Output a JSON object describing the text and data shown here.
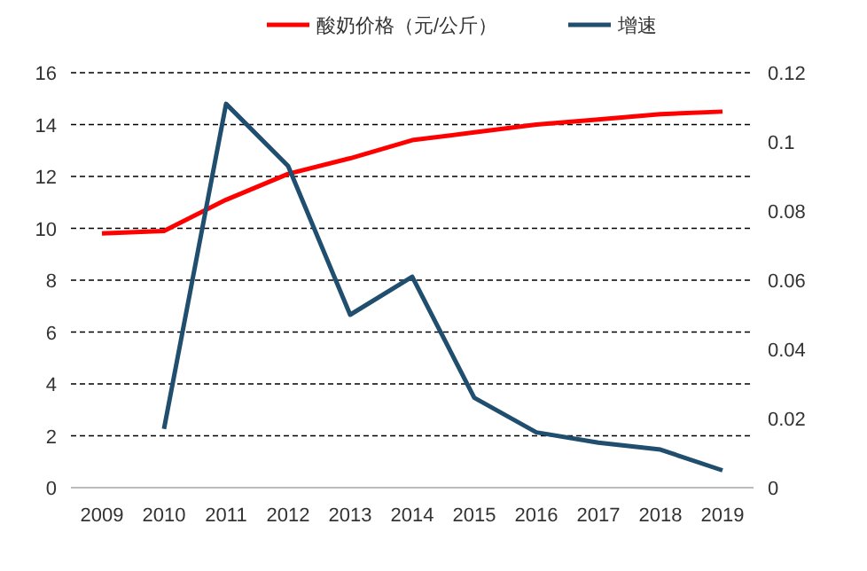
{
  "chart_data": {
    "type": "line",
    "categories": [
      "2009",
      "2010",
      "2011",
      "2012",
      "2013",
      "2014",
      "2015",
      "2016",
      "2017",
      "2018",
      "2019"
    ],
    "series": [
      {
        "name": "酸奶价格（元/公斤）",
        "color": "#ff0000",
        "values": [
          9.8,
          9.9,
          11.1,
          12.1,
          12.7,
          13.4,
          13.7,
          14.0,
          14.2,
          14.4,
          14.5
        ]
      },
      {
        "name": "增速",
        "color": "#1f4e6e",
        "axis": "y2",
        "values": [
          null,
          0.017,
          0.111,
          0.093,
          0.05,
          0.061,
          0.026,
          0.016,
          0.013,
          0.011,
          0.005
        ]
      }
    ],
    "ylim": [
      0,
      16
    ],
    "yticks": [
      0,
      2,
      4,
      6,
      8,
      10,
      12,
      14,
      16
    ],
    "y2lim": [
      0,
      0.12
    ],
    "y2ticks": [
      0,
      0.02,
      0.04,
      0.06,
      0.08,
      0.1,
      0.12
    ],
    "grid": "y",
    "legend": "top",
    "marker": "none",
    "line_style": "solid"
  }
}
